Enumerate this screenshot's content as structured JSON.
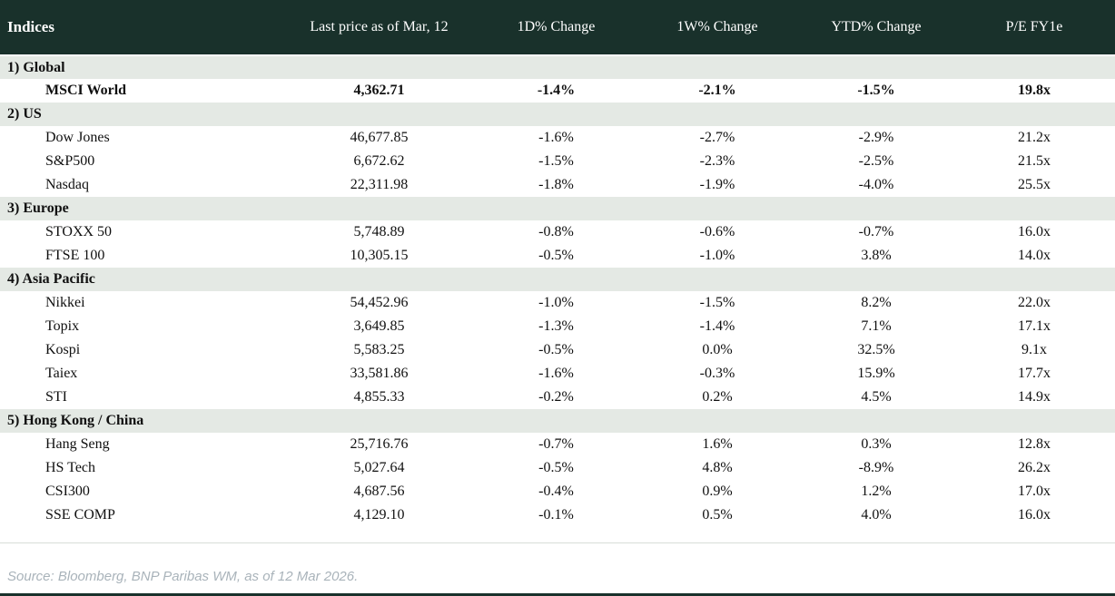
{
  "header": {
    "columns": [
      "Indices",
      "Last price as of Mar, 12",
      "1D% Change",
      "1W% Change",
      "YTD% Change",
      "P/E FY1e"
    ]
  },
  "sections": [
    {
      "label": "1) Global",
      "rows": [
        {
          "name": "MSCI World",
          "price": "4,362.71",
          "chg": [
            "-1.4%",
            "-2.1%",
            "-1.5%"
          ],
          "chg_colors": [
            "neg",
            "neg",
            "neg"
          ],
          "pe": "19.8x",
          "bold": true
        }
      ]
    },
    {
      "label": "2) US",
      "rows": [
        {
          "name": "Dow Jones",
          "price": "46,677.85",
          "chg": [
            "-1.6%",
            "-2.7%",
            "-2.9%"
          ],
          "chg_colors": [
            "neg",
            "neg",
            "neg"
          ],
          "pe": "21.2x"
        },
        {
          "name": "S&P500",
          "price": "6,672.62",
          "chg": [
            "-1.5%",
            "-2.3%",
            "-2.5%"
          ],
          "chg_colors": [
            "neg",
            "neg",
            "neg"
          ],
          "pe": "21.5x"
        },
        {
          "name": "Nasdaq",
          "price": "22,311.98",
          "chg": [
            "-1.8%",
            "-1.9%",
            "-4.0%"
          ],
          "chg_colors": [
            "neg",
            "neg",
            "neg"
          ],
          "pe": "25.5x"
        }
      ]
    },
    {
      "label": "3) Europe",
      "rows": [
        {
          "name": "STOXX 50",
          "price": "5,748.89",
          "chg": [
            "-0.8%",
            "-0.6%",
            "-0.7%"
          ],
          "chg_colors": [
            "neg",
            "neg",
            "neg"
          ],
          "pe": "16.0x"
        },
        {
          "name": "FTSE 100",
          "price": "10,305.15",
          "chg": [
            "-0.5%",
            "-1.0%",
            "3.8%"
          ],
          "chg_colors": [
            "neg",
            "neg",
            "pos"
          ],
          "pe": "14.0x"
        }
      ]
    },
    {
      "label": "4) Asia Pacific",
      "rows": [
        {
          "name": "Nikkei",
          "price": "54,452.96",
          "chg": [
            "-1.0%",
            "-1.5%",
            "8.2%"
          ],
          "chg_colors": [
            "neg",
            "neg",
            "pos"
          ],
          "pe": "22.0x"
        },
        {
          "name": "Topix",
          "price": "3,649.85",
          "chg": [
            "-1.3%",
            "-1.4%",
            "7.1%"
          ],
          "chg_colors": [
            "neg",
            "neg",
            "pos"
          ],
          "pe": "17.1x"
        },
        {
          "name": "Kospi",
          "price": "5,583.25",
          "chg": [
            "-0.5%",
            "0.0%",
            "32.5%"
          ],
          "chg_colors": [
            "neg",
            "neg",
            "pos"
          ],
          "pe": "9.1x"
        },
        {
          "name": "Taiex",
          "price": "33,581.86",
          "chg": [
            "-1.6%",
            "-0.3%",
            "15.9%"
          ],
          "chg_colors": [
            "neg",
            "neg",
            "pos"
          ],
          "pe": "17.7x"
        },
        {
          "name": "STI",
          "price": "4,855.33",
          "chg": [
            "-0.2%",
            "0.2%",
            "4.5%"
          ],
          "chg_colors": [
            "neg",
            "pos",
            "pos"
          ],
          "pe": "14.9x"
        }
      ]
    },
    {
      "label": "5) Hong Kong / China",
      "rows": [
        {
          "name": "Hang Seng",
          "price": "25,716.76",
          "chg": [
            "-0.7%",
            "1.6%",
            "0.3%"
          ],
          "chg_colors": [
            "neg",
            "pos",
            "pos"
          ],
          "pe": "12.8x"
        },
        {
          "name": "HS Tech",
          "price": "5,027.64",
          "chg": [
            "-0.5%",
            "4.8%",
            "-8.9%"
          ],
          "chg_colors": [
            "neg",
            "pos",
            "neg"
          ],
          "pe": "26.2x"
        },
        {
          "name": "CSI300",
          "price": "4,687.56",
          "chg": [
            "-0.4%",
            "0.9%",
            "1.2%"
          ],
          "chg_colors": [
            "neg",
            "pos",
            "pos"
          ],
          "pe": "17.0x"
        },
        {
          "name": "SSE COMP",
          "price": "4,129.10",
          "chg": [
            "-0.1%",
            "0.5%",
            "4.0%"
          ],
          "chg_colors": [
            "neg",
            "pos",
            "pos"
          ],
          "pe": "16.0x"
        }
      ]
    }
  ],
  "footer": {
    "source": "Source: Bloomberg, BNP Paribas WM, as of 12 Mar 2026."
  },
  "colors": {
    "header_bg": "#19312b",
    "section_bg": "#e4e9e4",
    "negative": "#c00000",
    "positive": "#0f9d30",
    "footer_text": "#a9b3ba",
    "bottom_bar": "#19312b"
  }
}
